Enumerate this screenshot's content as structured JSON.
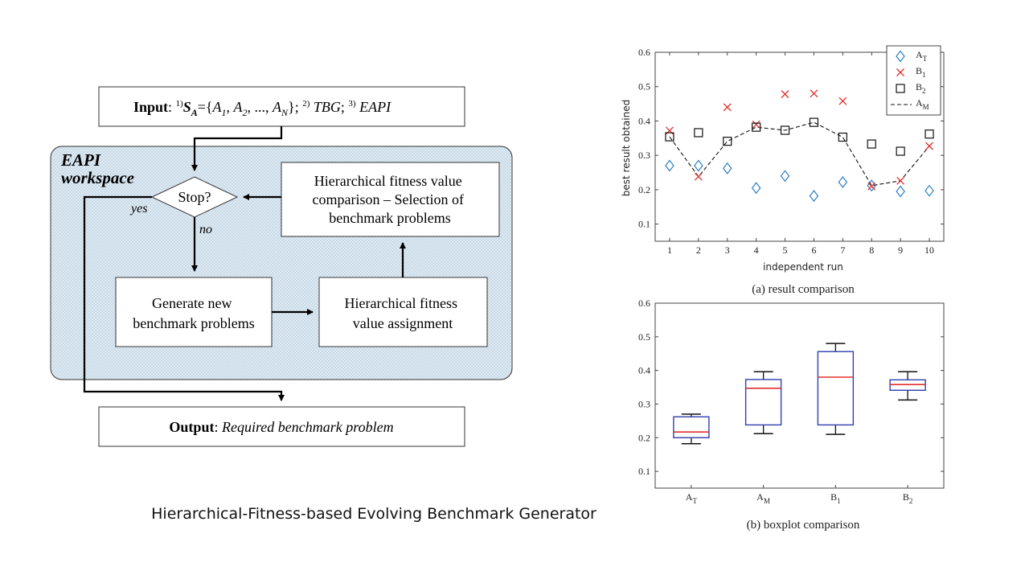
{
  "flowchart": {
    "input": {
      "label": "Input",
      "sep": ": ",
      "p1_sup": "1)",
      "S": "S",
      "S_sub": "A",
      "set_open": "={",
      "A": "A",
      "A1_sub": "1",
      "A2_sub": "2",
      "AN_sub": "N",
      "comma": ", ",
      "ellipsis": "..., ",
      "set_close": "};",
      "p2_sup": "2)",
      "tbg": "TBG",
      "semi": ";",
      "p3_sup": "3)",
      "eapi": "EAPI"
    },
    "workspace": {
      "line1": "EAPI",
      "line2": "workspace"
    },
    "decision": {
      "label": "Stop?",
      "yes": "yes",
      "no": "no"
    },
    "selection_box": [
      "Hierarchical fitness value",
      "comparison – Selection of",
      "benchmark problems"
    ],
    "generate_box": [
      "Generate new",
      "benchmark problems"
    ],
    "assign_box": [
      "Hierarchical fitness",
      "value assignment"
    ],
    "output": {
      "label": "Output",
      "sep": ": ",
      "value": "Required benchmark problem"
    },
    "colors": {
      "workspace_fill": "#dde9f1",
      "workspace_dots": "#7fa5c4"
    }
  },
  "caption": "Hierarchical-Fitness-based Evolving Benchmark Generator",
  "chart_data": [
    {
      "type": "scatter",
      "caption": "(a) result comparison",
      "xlabel": "independent run",
      "ylabel": "best result obtained",
      "x": [
        1,
        2,
        3,
        4,
        5,
        6,
        7,
        8,
        9,
        10
      ],
      "xlim": [
        0.5,
        10.5
      ],
      "ylim": [
        0.05,
        0.6
      ],
      "yticks": [
        0.1,
        0.2,
        0.3,
        0.4,
        0.5,
        0.6
      ],
      "legend": "top-right",
      "series": [
        {
          "name": "A",
          "sub": "T",
          "marker": "diamond",
          "color": "#2a7fc0",
          "values": [
            0.27,
            0.27,
            0.262,
            0.205,
            0.24,
            0.182,
            0.222,
            0.212,
            0.195,
            0.197
          ]
        },
        {
          "name": "B",
          "sub": "1",
          "marker": "x",
          "color": "#e0302f",
          "values": [
            0.372,
            0.238,
            0.44,
            0.39,
            0.478,
            0.48,
            0.458,
            0.21,
            0.226,
            0.327
          ]
        },
        {
          "name": "B",
          "sub": "2",
          "marker": "square",
          "color": "#111111",
          "values": [
            0.354,
            0.366,
            0.341,
            0.382,
            0.373,
            0.396,
            0.353,
            0.333,
            0.312,
            0.362
          ]
        },
        {
          "name": "A",
          "sub": "M",
          "marker": "dashed-line",
          "color": "#111111",
          "values": [
            0.354,
            0.238,
            0.341,
            0.382,
            0.373,
            0.396,
            0.353,
            0.212,
            0.226,
            0.327
          ]
        }
      ]
    },
    {
      "type": "boxplot",
      "caption": "(b) boxplot comparison",
      "ylim": [
        0.05,
        0.6
      ],
      "yticks": [
        0.1,
        0.2,
        0.3,
        0.4,
        0.5,
        0.6
      ],
      "categories": [
        {
          "name": "A",
          "sub": "T"
        },
        {
          "name": "A",
          "sub": "M"
        },
        {
          "name": "B",
          "sub": "1"
        },
        {
          "name": "B",
          "sub": "2"
        }
      ],
      "boxes": [
        {
          "min": 0.182,
          "q1": 0.2,
          "median": 0.217,
          "q3": 0.262,
          "max": 0.27
        },
        {
          "min": 0.212,
          "q1": 0.238,
          "median": 0.347,
          "q3": 0.373,
          "max": 0.396
        },
        {
          "min": 0.21,
          "q1": 0.238,
          "median": 0.38,
          "q3": 0.456,
          "max": 0.48
        },
        {
          "min": 0.312,
          "q1": 0.341,
          "median": 0.358,
          "q3": 0.372,
          "max": 0.396
        }
      ],
      "colors": {
        "box": "#2f3fb0",
        "median": "#e0302f",
        "whisker": "#111111"
      }
    }
  ]
}
